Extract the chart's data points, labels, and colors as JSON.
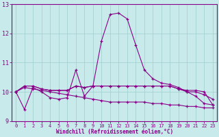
{
  "xlabel": "Windchill (Refroidissement éolien,°C)",
  "xlim": [
    -0.5,
    23.5
  ],
  "ylim": [
    9,
    13
  ],
  "yticks": [
    9,
    10,
    11,
    12,
    13
  ],
  "xticks": [
    0,
    1,
    2,
    3,
    4,
    5,
    6,
    7,
    8,
    9,
    10,
    11,
    12,
    13,
    14,
    15,
    16,
    17,
    18,
    19,
    20,
    21,
    22,
    23
  ],
  "bg_color": "#c8eaea",
  "grid_color": "#9ecece",
  "line_color": "#880088",
  "line1_y": [
    10.0,
    9.4,
    10.15,
    10.0,
    9.8,
    9.75,
    9.8,
    10.75,
    9.85,
    10.2,
    11.75,
    12.65,
    12.7,
    12.5,
    11.6,
    10.75,
    10.45,
    10.3,
    10.25,
    10.15,
    10.0,
    9.85,
    9.6,
    9.55
  ],
  "line2_y": [
    10.0,
    10.2,
    10.2,
    10.1,
    10.05,
    10.05,
    10.05,
    10.2,
    10.15,
    10.2,
    10.2,
    10.2,
    10.2,
    10.2,
    10.2,
    10.2,
    10.2,
    10.2,
    10.2,
    10.1,
    10.0,
    10.0,
    9.9,
    9.75
  ],
  "line3_y": [
    10.0,
    10.15,
    10.1,
    10.05,
    10.0,
    9.95,
    9.9,
    9.85,
    9.8,
    9.75,
    9.7,
    9.65,
    9.65,
    9.65,
    9.65,
    9.65,
    9.6,
    9.6,
    9.55,
    9.55,
    9.5,
    9.5,
    9.45,
    9.45
  ],
  "line4_y": [
    10.0,
    10.2,
    10.2,
    10.1,
    10.05,
    10.05,
    10.05,
    10.2,
    10.15,
    10.2,
    10.2,
    10.2,
    10.2,
    10.2,
    10.2,
    10.2,
    10.2,
    10.2,
    10.2,
    10.1,
    10.05,
    10.05,
    10.0,
    9.55
  ]
}
